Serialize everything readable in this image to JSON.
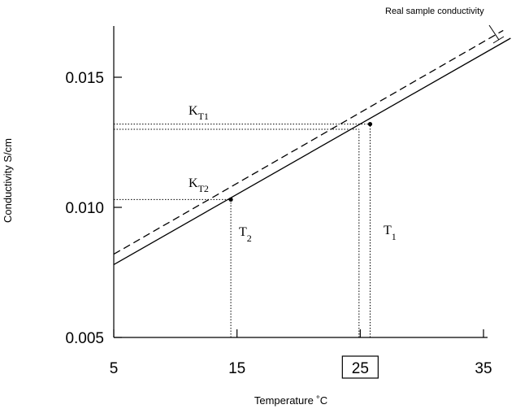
{
  "chart_data": {
    "type": "line",
    "title": "",
    "xlabel": "Temperature ˚C",
    "ylabel": "Conductivity S/cm",
    "xlim": [
      5,
      36.5
    ],
    "ylim": [
      0.005,
      0.017
    ],
    "x_ticks": [
      {
        "value": 5,
        "label": "5"
      },
      {
        "value": 15,
        "label": "15"
      },
      {
        "value": 25,
        "label": "25",
        "boxed": true
      },
      {
        "value": 35,
        "label": "35"
      }
    ],
    "y_ticks": [
      {
        "value": 0.005,
        "label": "0.005"
      },
      {
        "value": 0.01,
        "label": "0.010"
      },
      {
        "value": 0.015,
        "label": "0.015"
      }
    ],
    "grid": false,
    "series": [
      {
        "name": "",
        "style": "solid",
        "x": [
          5,
          37.2
        ],
        "y": [
          0.0078,
          0.0165
        ]
      },
      {
        "name": "Real sample conductivity",
        "style": "dashed",
        "x": [
          5,
          36.6
        ],
        "y": [
          0.0082,
          0.0168
        ]
      }
    ],
    "points": [
      {
        "x": 14.5,
        "y": 0.0103
      },
      {
        "x": 25.8,
        "y": 0.0132
      }
    ],
    "reference_lines": [
      {
        "orientation": "horizontal",
        "y": 0.0132,
        "x_from": 5,
        "x_to": 25.8
      },
      {
        "orientation": "horizontal",
        "y": 0.013,
        "x_from": 5,
        "x_to": 24.9
      },
      {
        "orientation": "horizontal",
        "y": 0.0103,
        "x_from": 5,
        "x_to": 14.5
      },
      {
        "orientation": "vertical",
        "x": 14.5,
        "y_from": 0.005,
        "y_to": 0.0103
      },
      {
        "orientation": "vertical",
        "x": 25.8,
        "y_from": 0.005,
        "y_to": 0.0132
      },
      {
        "orientation": "vertical",
        "x": 24.9,
        "y_from": 0.005,
        "y_to": 0.013
      }
    ],
    "annotations": {
      "kt1": {
        "main": "K",
        "sub": "T1"
      },
      "kt2": {
        "main": "K",
        "sub": "T2"
      },
      "t1": {
        "main": "T",
        "sub": "1"
      },
      "t2": {
        "main": "T",
        "sub": "2"
      },
      "legend_label": "Real sample conductivity"
    }
  }
}
